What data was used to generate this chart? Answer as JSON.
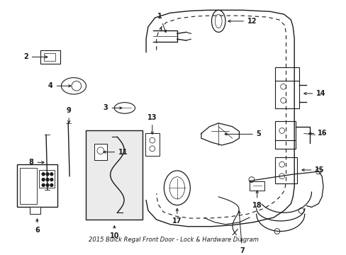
{
  "title": "2015 Buick Regal Front Door - Lock & Hardware Diagram",
  "bg_color": "#ffffff",
  "fig_width": 4.89,
  "fig_height": 3.6,
  "dpi": 100,
  "line_color": "#1a1a1a",
  "number_fontsize": 7.0
}
